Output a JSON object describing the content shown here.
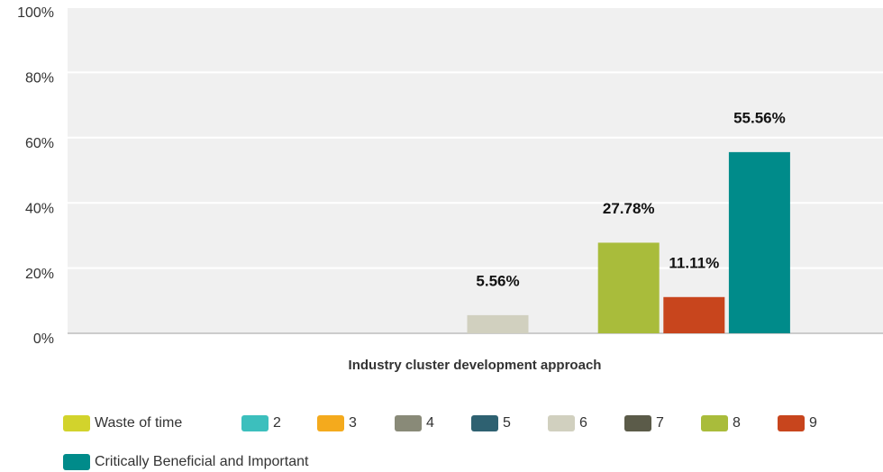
{
  "chart_data": {
    "type": "bar",
    "categories": [
      "Industry cluster development approach"
    ],
    "x_label": "Industry cluster development approach",
    "ylim": [
      0,
      100
    ],
    "yticks": [
      {
        "value": 0,
        "label": "0%"
      },
      {
        "value": 20,
        "label": "20%"
      },
      {
        "value": 40,
        "label": "40%"
      },
      {
        "value": 60,
        "label": "60%"
      },
      {
        "value": 80,
        "label": "80%"
      },
      {
        "value": 100,
        "label": "100%"
      }
    ],
    "grid": true,
    "legend": "bottom",
    "series": [
      {
        "name": "Waste of time",
        "color": "#d2d32c",
        "values": [
          0
        ]
      },
      {
        "name": "2",
        "color": "#3cbfbd",
        "values": [
          0
        ]
      },
      {
        "name": "3",
        "color": "#f4aa1d",
        "values": [
          0
        ]
      },
      {
        "name": "4",
        "color": "#898a78",
        "values": [
          0
        ]
      },
      {
        "name": "5",
        "color": "#2e6171",
        "values": [
          0
        ]
      },
      {
        "name": "6",
        "color": "#d1d0bf",
        "values": [
          5.56
        ],
        "value_labels": [
          "5.56%"
        ]
      },
      {
        "name": "7",
        "color": "#5b5b49",
        "values": [
          0
        ]
      },
      {
        "name": "8",
        "color": "#a9bc3b",
        "values": [
          27.78
        ],
        "value_labels": [
          "27.78%"
        ]
      },
      {
        "name": "9",
        "color": "#c8451d",
        "values": [
          11.11
        ],
        "value_labels": [
          "11.11%"
        ]
      },
      {
        "name": "Critically Beneficial and Important",
        "color": "#008b8a",
        "values": [
          55.56
        ],
        "value_labels": [
          "55.56%"
        ]
      }
    ]
  }
}
